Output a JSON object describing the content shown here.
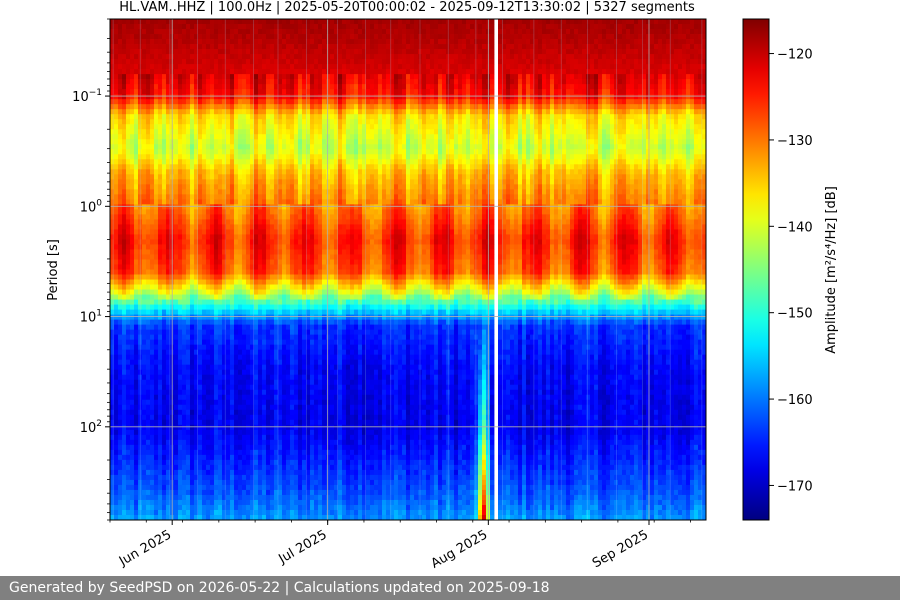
{
  "chart_data": {
    "type": "heatmap",
    "title": "HL.VAM..HHZ | 100.0Hz | 2025-05-20T00:00:02 - 2025-09-12T13:30:02 | 5327 segments",
    "ylabel": "Period [s]",
    "colorbar_label": "Amplitude [m²/s⁴/Hz] [dB]",
    "y_scale": "log",
    "y_inverted": true,
    "ylim": [
      0.02,
      700
    ],
    "y_ticks": [
      {
        "value": 0.1,
        "base": "10",
        "exp": "−1"
      },
      {
        "value": 1,
        "base": "10",
        "exp": "0"
      },
      {
        "value": 10,
        "base": "10",
        "exp": "1"
      },
      {
        "value": 100,
        "base": "10",
        "exp": "2"
      }
    ],
    "xlim": [
      "2025-05-20",
      "2025-09-12"
    ],
    "x_ticks": [
      {
        "date": "2025-06-01",
        "label": "Jun 2025"
      },
      {
        "date": "2025-07-01",
        "label": "Jul 2025"
      },
      {
        "date": "2025-08-01",
        "label": "Aug 2025"
      },
      {
        "date": "2025-09-01",
        "label": "Sep 2025"
      }
    ],
    "color_range": [
      -174,
      -116
    ],
    "colorbar_ticks": [
      -120,
      -130,
      -140,
      -150,
      -160,
      -170
    ],
    "colormap": "jet",
    "grid": true,
    "data_gap": {
      "start": "2025-08-02",
      "end": "2025-08-03"
    },
    "amplitude_profile": [
      {
        "period": 0.02,
        "db": -118
      },
      {
        "period": 0.03,
        "db": -119
      },
      {
        "period": 0.06,
        "db": -121
      },
      {
        "period": 0.1,
        "db": -124
      },
      {
        "period": 0.15,
        "db": -136
      },
      {
        "period": 0.3,
        "db": -141
      },
      {
        "period": 0.5,
        "db": -134
      },
      {
        "period": 1,
        "db": -130
      },
      {
        "period": 2,
        "db": -125
      },
      {
        "period": 4,
        "db": -128
      },
      {
        "period": 6,
        "db": -140
      },
      {
        "period": 8,
        "db": -151
      },
      {
        "period": 12,
        "db": -164
      },
      {
        "period": 30,
        "db": -167
      },
      {
        "period": 100,
        "db": -168
      },
      {
        "period": 400,
        "db": -162
      },
      {
        "period": 700,
        "db": -158
      }
    ]
  },
  "footer": {
    "text": "Generated by SeedPSD on 2026-05-22 | Calculations updated on 2025-09-18"
  }
}
